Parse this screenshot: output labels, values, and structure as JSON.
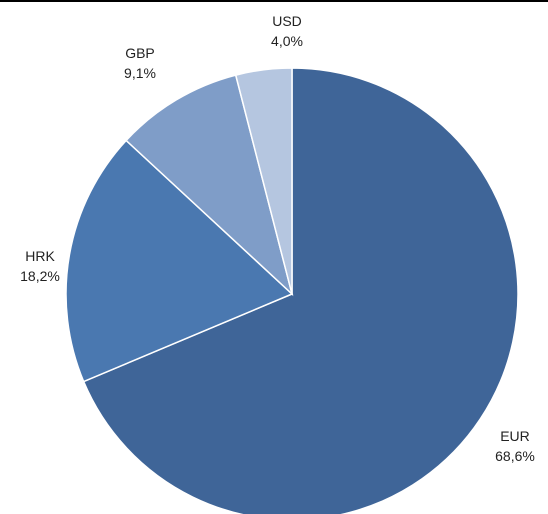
{
  "chart_data": {
    "type": "pie",
    "title": "",
    "categories": [
      "EUR",
      "HRK",
      "GBP",
      "USD"
    ],
    "values": [
      68.6,
      18.2,
      9.1,
      4.0
    ],
    "value_labels": [
      "68,6%",
      "18,2%",
      "9,1%",
      "4,0%"
    ],
    "colors": [
      "#3F6598",
      "#4A78B0",
      "#7F9DC8",
      "#B5C6E0"
    ],
    "start": "12 o'clock",
    "direction": "clockwise",
    "legend": "none"
  }
}
